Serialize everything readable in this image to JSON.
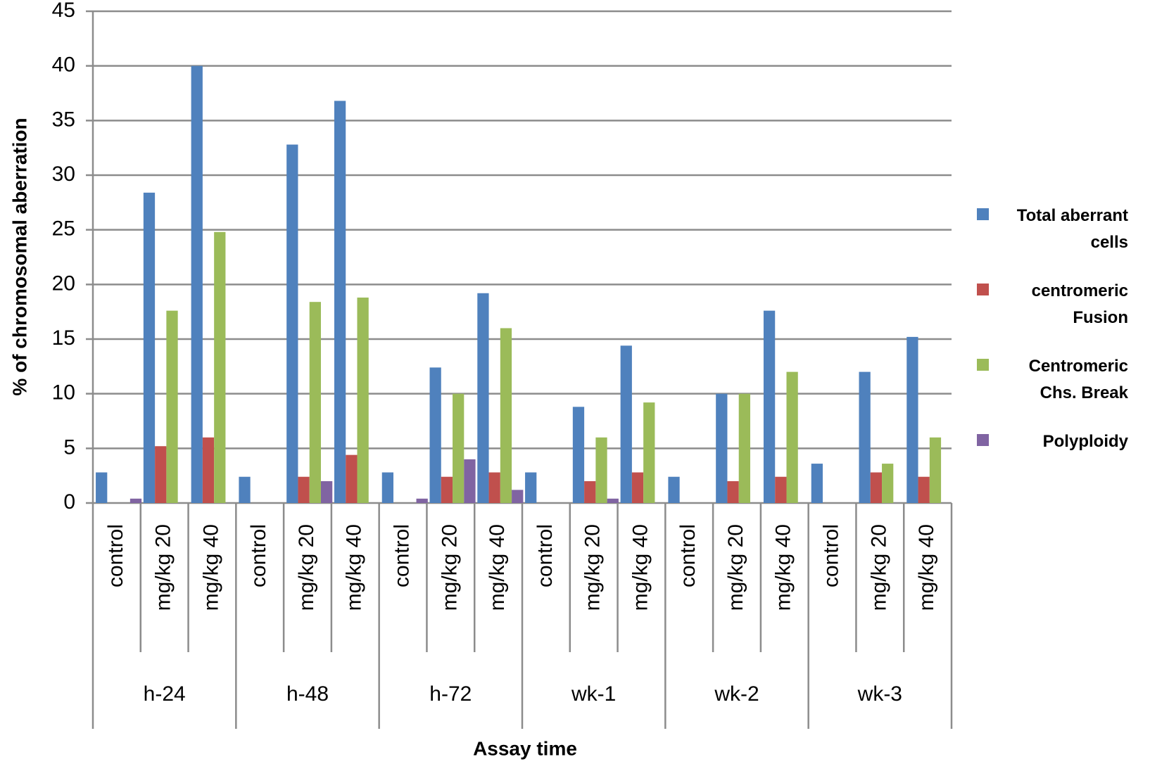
{
  "chart_data": {
    "type": "bar",
    "y_label": "% of chromosomal aberration",
    "x_label": "Assay time",
    "groups": [
      "h-24",
      "h-48",
      "h-72",
      "wk-1",
      "wk-2",
      "wk-3"
    ],
    "categories": [
      "control",
      "mg/kg 20",
      "mg/kg 40",
      "control",
      "mg/kg 20",
      "mg/kg 40",
      "control",
      "mg/kg 20",
      "mg/kg 40",
      "control",
      "mg/kg 20",
      "mg/kg 40",
      "control",
      "mg/kg 20",
      "mg/kg 40",
      "control",
      "mg/kg 20",
      "mg/kg 40"
    ],
    "series": [
      {
        "name": "Total aberrant cells",
        "color": "#4f81bd",
        "values": [
          2.8,
          28.4,
          40,
          2.4,
          32.8,
          36.8,
          2.8,
          12.4,
          19.2,
          2.8,
          8.8,
          14.4,
          2.4,
          10,
          17.6,
          3.6,
          12,
          15.2
        ]
      },
      {
        "name": "centromeric Fusion",
        "color": "#c0504d",
        "values": [
          0,
          5.2,
          6,
          0,
          2.4,
          4.4,
          0,
          2.4,
          2.8,
          0,
          2,
          2.8,
          0,
          2,
          2.4,
          0,
          2.8,
          2.4
        ]
      },
      {
        "name": "Centromeric Chs. Break",
        "color": "#9bbb59",
        "values": [
          0,
          17.6,
          24.8,
          0,
          18.4,
          18.8,
          0,
          10,
          16,
          0,
          6,
          9.2,
          0,
          10,
          12,
          0,
          3.6,
          6
        ]
      },
      {
        "name": "Polyploidy",
        "color": "#8064a2",
        "values": [
          0.4,
          0,
          0,
          0,
          2,
          0,
          0.4,
          4,
          1.2,
          0,
          0.4,
          0,
          0,
          0,
          0,
          0,
          0,
          0
        ]
      }
    ],
    "ylim": [
      0,
      45
    ],
    "yticks": [
      0,
      5,
      10,
      15,
      20,
      25,
      30,
      35,
      40,
      45
    ],
    "grid": true,
    "legend": "right"
  }
}
